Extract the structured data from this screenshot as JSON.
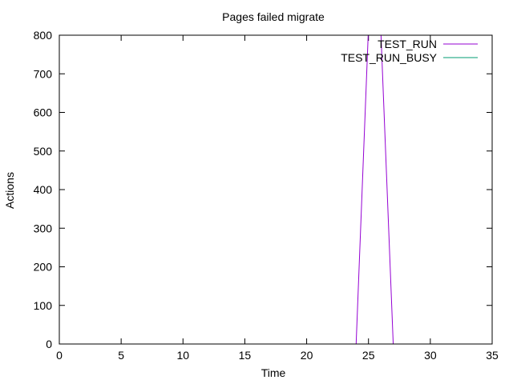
{
  "chart_data": {
    "type": "line",
    "title": "Pages failed migrate",
    "xlabel": "Time",
    "ylabel": "Actions",
    "xlim": [
      0,
      35
    ],
    "ylim": [
      0,
      800
    ],
    "xticks": [
      0,
      5,
      10,
      15,
      20,
      25,
      30,
      35
    ],
    "yticks": [
      0,
      100,
      200,
      300,
      400,
      500,
      600,
      700,
      800
    ],
    "grid": false,
    "legend_position": "top-right",
    "series": [
      {
        "name": "TEST_RUN",
        "color": "#9400d3",
        "x": [
          0,
          1,
          2,
          3,
          4,
          5,
          6,
          7,
          8,
          9,
          10,
          11,
          12,
          13,
          14,
          15,
          16,
          17,
          18,
          19,
          20,
          21,
          22,
          23,
          24,
          25,
          26,
          27,
          28,
          29,
          30,
          31,
          32,
          33,
          34
        ],
        "y": [
          0,
          0,
          0,
          0,
          0,
          0,
          0,
          0,
          0,
          0,
          0,
          0,
          0,
          0,
          0,
          0,
          0,
          0,
          0,
          0,
          0,
          0,
          0,
          0,
          0,
          820,
          810,
          0,
          0,
          0,
          0,
          0,
          0,
          0,
          0
        ]
      },
      {
        "name": "TEST_RUN_BUSY",
        "color": "#009e73",
        "x": [
          0,
          1,
          2,
          3,
          4,
          5,
          6,
          7,
          8,
          9,
          10,
          11,
          12,
          13,
          14,
          15,
          16,
          17,
          18,
          19,
          20,
          21,
          22,
          23,
          24,
          25,
          26,
          27,
          28,
          29,
          30,
          31,
          32,
          33,
          34
        ],
        "y": [
          0,
          0,
          0,
          0,
          0,
          0,
          0,
          0,
          0,
          0,
          0,
          0,
          0,
          0,
          0,
          0,
          0,
          0,
          0,
          0,
          0,
          0,
          0,
          0,
          0,
          0,
          0,
          0,
          0,
          0,
          0,
          0,
          0,
          0,
          0
        ]
      }
    ]
  }
}
